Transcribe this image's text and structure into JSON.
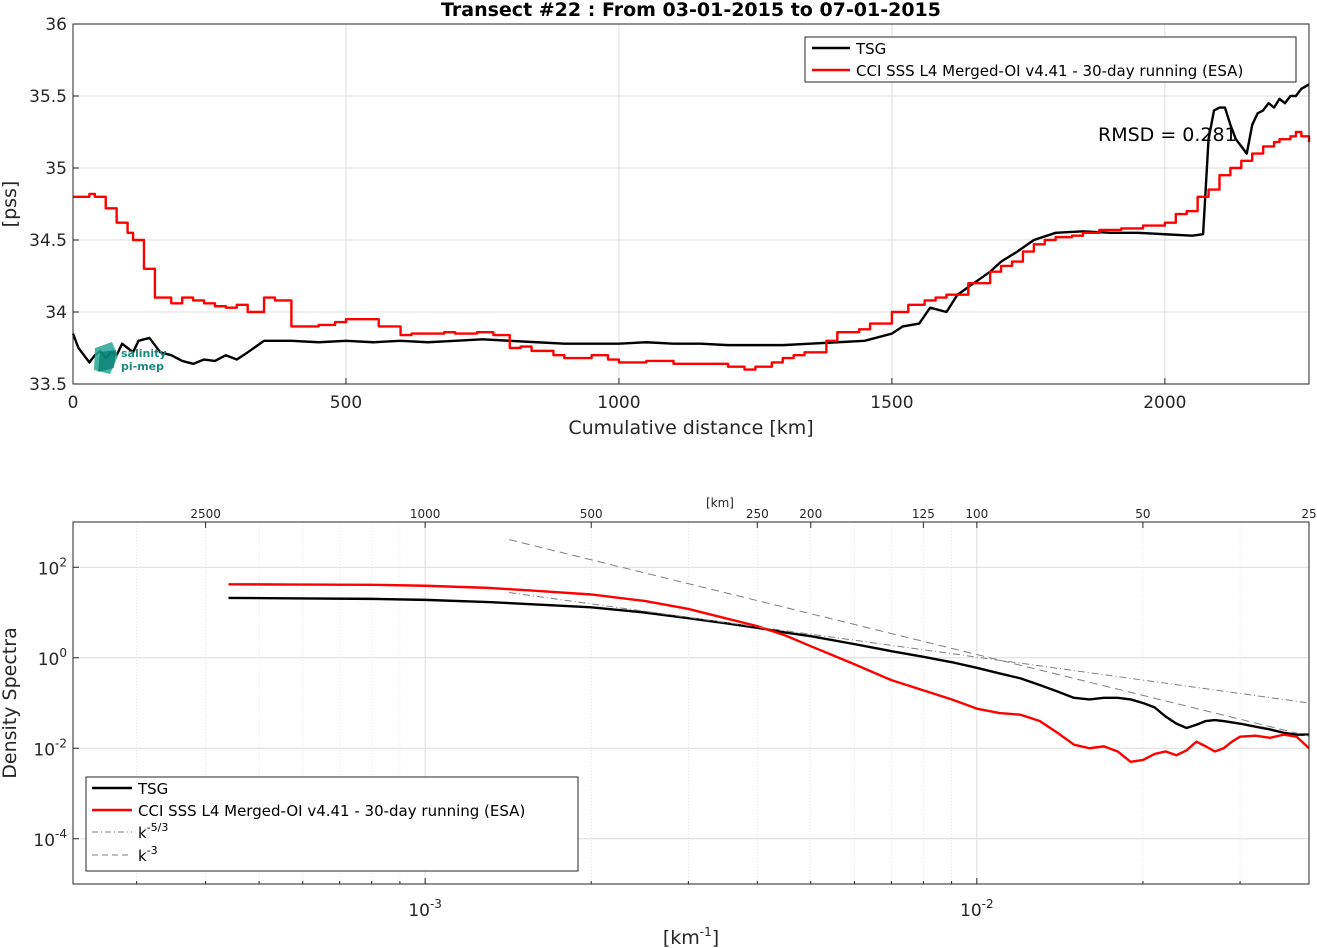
{
  "chart_data": [
    {
      "type": "line",
      "title": "Transect #22 : From 03-01-2015 to 07-01-2015",
      "xlabel": "Cumulative distance [km]",
      "ylabel": "[pss]",
      "xlim": [
        0,
        2264
      ],
      "ylim": [
        33.5,
        36
      ],
      "x_ticks": [
        "0",
        "500",
        "1000",
        "1500",
        "2000"
      ],
      "y_ticks": [
        "33.5",
        "34",
        "34.5",
        "35",
        "35.5",
        "36"
      ],
      "grid": true,
      "legend_position": "top-right",
      "annotation": "RMSD = 0.281",
      "logo": "salinity pi-mep",
      "series": [
        {
          "name": "TSG",
          "color": "#000000",
          "x": [
            0,
            10,
            20,
            30,
            40,
            50,
            60,
            70,
            80,
            90,
            100,
            110,
            120,
            140,
            160,
            180,
            200,
            220,
            240,
            260,
            280,
            300,
            320,
            350,
            400,
            450,
            500,
            550,
            600,
            650,
            700,
            750,
            800,
            850,
            900,
            950,
            1000,
            1050,
            1100,
            1150,
            1200,
            1250,
            1300,
            1350,
            1400,
            1450,
            1500,
            1520,
            1550,
            1570,
            1600,
            1620,
            1650,
            1680,
            1700,
            1730,
            1760,
            1800,
            1850,
            1900,
            1950,
            2000,
            2050,
            2070,
            2080,
            2090,
            2100,
            2110,
            2120,
            2130,
            2140,
            2150,
            2160,
            2170,
            2180,
            2190,
            2200,
            2210,
            2220,
            2230,
            2240,
            2250,
            2264
          ],
          "values": [
            33.85,
            33.75,
            33.7,
            33.65,
            33.7,
            33.73,
            33.68,
            33.72,
            33.7,
            33.78,
            33.75,
            33.72,
            33.8,
            33.82,
            33.72,
            33.7,
            33.66,
            33.64,
            33.67,
            33.66,
            33.7,
            33.67,
            33.72,
            33.8,
            33.8,
            33.79,
            33.8,
            33.79,
            33.8,
            33.79,
            33.8,
            33.81,
            33.8,
            33.79,
            33.78,
            33.78,
            33.78,
            33.79,
            33.78,
            33.78,
            33.77,
            33.77,
            33.77,
            33.78,
            33.79,
            33.8,
            33.85,
            33.9,
            33.92,
            34.03,
            34.0,
            34.12,
            34.2,
            34.28,
            34.35,
            34.42,
            34.5,
            34.55,
            34.56,
            34.55,
            34.55,
            34.54,
            34.53,
            34.54,
            35.2,
            35.4,
            35.42,
            35.42,
            35.3,
            35.2,
            35.15,
            35.1,
            35.3,
            35.38,
            35.4,
            35.45,
            35.42,
            35.48,
            35.45,
            35.5,
            35.5,
            35.55,
            35.58
          ]
        },
        {
          "name": "CCI SSS L4 Merged-OI v4.41 - 30-day running (ESA)",
          "color": "#ff0000",
          "x": [
            0,
            30,
            40,
            60,
            80,
            100,
            110,
            130,
            140,
            150,
            160,
            180,
            200,
            220,
            240,
            260,
            280,
            300,
            320,
            350,
            370,
            400,
            450,
            480,
            500,
            550,
            560,
            600,
            620,
            650,
            680,
            700,
            740,
            770,
            800,
            820,
            840,
            880,
            900,
            950,
            980,
            1000,
            1050,
            1100,
            1150,
            1200,
            1230,
            1250,
            1280,
            1300,
            1320,
            1340,
            1380,
            1400,
            1440,
            1460,
            1480,
            1500,
            1530,
            1560,
            1580,
            1600,
            1640,
            1680,
            1700,
            1720,
            1740,
            1760,
            1780,
            1800,
            1830,
            1850,
            1860,
            1880,
            1900,
            1920,
            1960,
            2000,
            2020,
            2040,
            2060,
            2080,
            2100,
            2120,
            2140,
            2160,
            2180,
            2200,
            2210,
            2230,
            2240,
            2250,
            2264
          ],
          "values": [
            34.8,
            34.82,
            34.8,
            34.72,
            34.62,
            34.55,
            34.5,
            34.3,
            34.3,
            34.1,
            34.1,
            34.06,
            34.1,
            34.08,
            34.06,
            34.04,
            34.03,
            34.05,
            34.0,
            34.1,
            34.08,
            33.9,
            33.91,
            33.93,
            33.95,
            33.95,
            33.9,
            33.84,
            33.85,
            33.85,
            33.86,
            33.85,
            33.86,
            33.84,
            33.75,
            33.76,
            33.73,
            33.7,
            33.68,
            33.7,
            33.67,
            33.65,
            33.66,
            33.64,
            33.64,
            33.62,
            33.6,
            33.62,
            33.65,
            33.68,
            33.7,
            33.72,
            33.8,
            33.86,
            33.88,
            33.92,
            33.92,
            34.0,
            34.05,
            34.08,
            34.1,
            34.12,
            34.2,
            34.28,
            34.32,
            34.35,
            34.42,
            34.47,
            34.5,
            34.52,
            34.53,
            34.55,
            34.55,
            34.57,
            34.57,
            34.58,
            34.6,
            34.62,
            34.68,
            34.7,
            34.8,
            34.85,
            34.95,
            35.0,
            35.05,
            35.1,
            35.15,
            35.18,
            35.2,
            35.22,
            35.25,
            35.22,
            35.18
          ]
        }
      ]
    },
    {
      "type": "line",
      "xlabel": "[km-1]",
      "ylabel": "Density Spectra",
      "top_axis_label": "[km]",
      "x_scale": "log",
      "y_scale": "log",
      "xlim": [
        0.00023,
        0.04
      ],
      "ylim": [
        1e-05,
        1000
      ],
      "x_ticks": [
        {
          "value": 0.001,
          "label": "10-3"
        },
        {
          "value": 0.01,
          "label": "10-2"
        }
      ],
      "y_ticks": [
        {
          "value": 100,
          "label": "10^2"
        },
        {
          "value": 1,
          "label": "10^0"
        },
        {
          "value": 0.01,
          "label": "10^-2"
        },
        {
          "value": 0.0001,
          "label": "10^-4"
        }
      ],
      "top_ticks": [
        "2500",
        "1000",
        "500",
        "250",
        "200",
        "125",
        "100",
        "50",
        "25"
      ],
      "grid": true,
      "legend_position": "bottom-left",
      "series": [
        {
          "name": "TSG",
          "color": "#000000",
          "x": [
            0.00044,
            0.0006,
            0.0008,
            0.001,
            0.0013,
            0.0016,
            0.002,
            0.0025,
            0.003,
            0.0035,
            0.004,
            0.0045,
            0.005,
            0.006,
            0.007,
            0.008,
            0.009,
            0.01,
            0.011,
            0.012,
            0.013,
            0.014,
            0.015,
            0.016,
            0.017,
            0.018,
            0.019,
            0.02,
            0.021,
            0.022,
            0.023,
            0.024,
            0.025,
            0.026,
            0.027,
            0.028,
            0.03,
            0.032,
            0.034,
            0.036,
            0.038,
            0.04
          ],
          "values": [
            21,
            20.5,
            20,
            19,
            17,
            15,
            13,
            10,
            7.5,
            5.8,
            4.6,
            3.6,
            3.0,
            2.0,
            1.4,
            1.05,
            0.8,
            0.6,
            0.45,
            0.35,
            0.25,
            0.18,
            0.13,
            0.12,
            0.13,
            0.13,
            0.12,
            0.1,
            0.08,
            0.05,
            0.035,
            0.028,
            0.033,
            0.04,
            0.042,
            0.04,
            0.035,
            0.03,
            0.026,
            0.022,
            0.02,
            0.02
          ]
        },
        {
          "name": "CCI SSS L4 Merged-OI v4.41 - 30-day running (ESA)",
          "color": "#ff0000",
          "x": [
            0.00044,
            0.0006,
            0.0008,
            0.001,
            0.0013,
            0.0016,
            0.002,
            0.0025,
            0.003,
            0.0035,
            0.004,
            0.0045,
            0.005,
            0.006,
            0.007,
            0.008,
            0.009,
            0.01,
            0.011,
            0.012,
            0.013,
            0.014,
            0.015,
            0.016,
            0.017,
            0.018,
            0.019,
            0.02,
            0.021,
            0.022,
            0.023,
            0.024,
            0.025,
            0.026,
            0.027,
            0.028,
            0.029,
            0.03,
            0.032,
            0.034,
            0.036,
            0.038,
            0.04
          ],
          "values": [
            42,
            41.5,
            41,
            39,
            35,
            30,
            25,
            18,
            12,
            7.5,
            5,
            3.1,
            1.8,
            0.72,
            0.32,
            0.19,
            0.12,
            0.075,
            0.06,
            0.055,
            0.04,
            0.022,
            0.012,
            0.01,
            0.011,
            0.0085,
            0.005,
            0.0055,
            0.0075,
            0.0085,
            0.007,
            0.009,
            0.014,
            0.011,
            0.0085,
            0.01,
            0.014,
            0.018,
            0.019,
            0.017,
            0.02,
            0.018,
            0.01
          ]
        },
        {
          "name": "k-5/3",
          "color": "#7f7f7f",
          "dash": "dashdot",
          "x": [
            0.00142,
            0.04
          ],
          "values": [
            27.6,
            0.1
          ]
        },
        {
          "name": "k-3",
          "color": "#7f7f7f",
          "dash": "dash",
          "x": [
            0.00142,
            0.04
          ],
          "values": [
            408,
            0.0185
          ]
        }
      ]
    }
  ]
}
